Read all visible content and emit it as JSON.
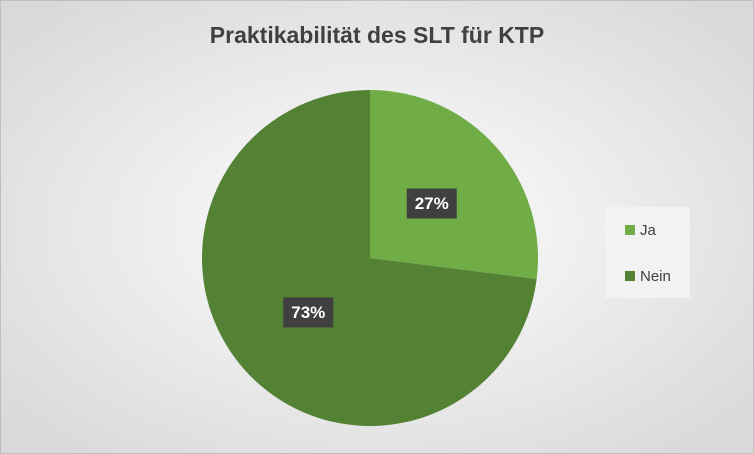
{
  "chart_data": {
    "type": "pie",
    "title": "Praktikabilität des SLT für KTP",
    "categories": [
      "Ja",
      "Nein"
    ],
    "values": [
      27,
      73
    ],
    "value_labels": [
      "27%",
      "73%"
    ],
    "colors": [
      "#70ad47",
      "#548235"
    ],
    "legend": "right"
  }
}
